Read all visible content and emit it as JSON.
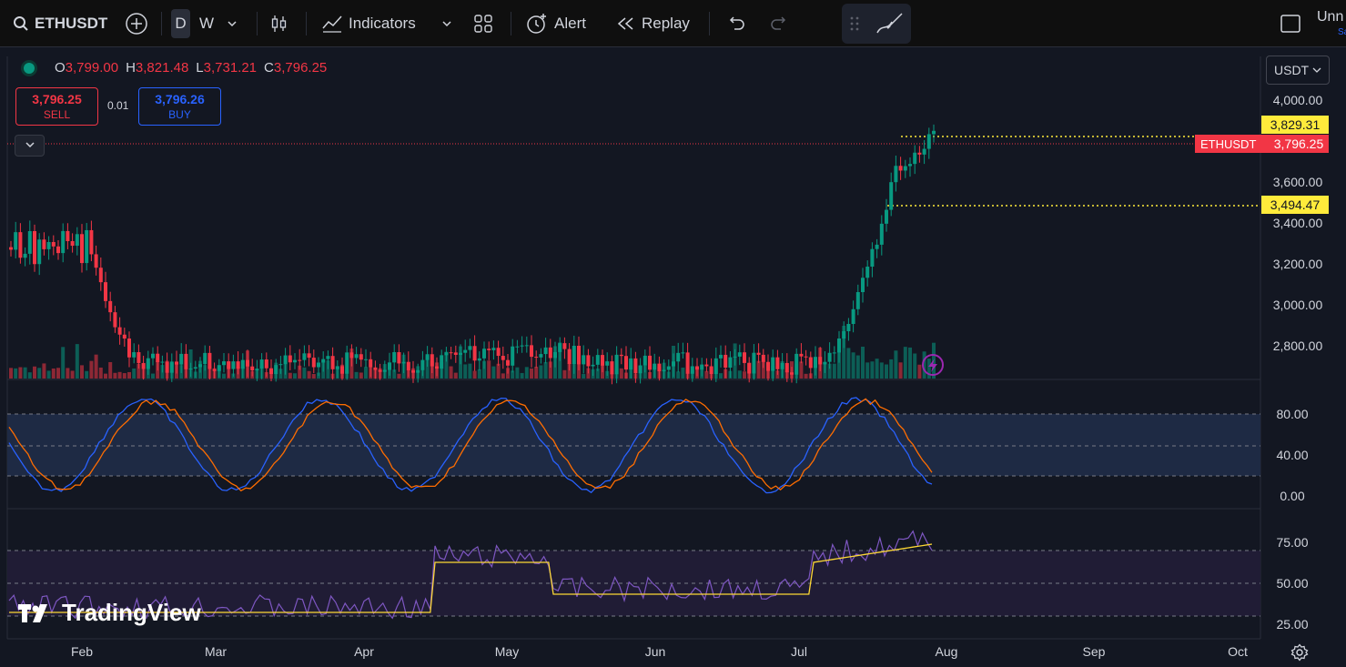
{
  "toolbar": {
    "symbol": "ETHUSDT",
    "interval_d": "D",
    "interval_w": "W",
    "indicators": "Indicators",
    "alert": "Alert",
    "replay": "Replay",
    "layout_name": "Unn",
    "layout_sub": "Sa"
  },
  "ohlc": {
    "o_label": "O",
    "o": "3,799.00",
    "h_label": "H",
    "h": "3,821.48",
    "l_label": "L",
    "l": "3,731.21",
    "c_label": "C",
    "c": "3,796.25"
  },
  "trade": {
    "sell_price": "3,796.25",
    "sell_label": "SELL",
    "spread": "0.01",
    "buy_price": "3,796.26",
    "buy_label": "BUY"
  },
  "currency": "USDT",
  "price_axis": [
    "4,000.00",
    "3,600.00",
    "3,400.00",
    "3,200.00",
    "3,000.00",
    "2,800.00"
  ],
  "price_tags": {
    "high": "3,829.31",
    "low": "3,494.47",
    "symbol": "ETHUSDT",
    "last": "3,796.25"
  },
  "stoch_axis": [
    "80.00",
    "40.00",
    "0.00"
  ],
  "rsi_axis": [
    "75.00",
    "50.00",
    "25.00"
  ],
  "time_axis": [
    "Feb",
    "Mar",
    "Apr",
    "May",
    "Jun",
    "Jul",
    "Aug",
    "Sep",
    "Oct"
  ],
  "brand": "TradingView",
  "colors": {
    "up": "#089981",
    "down": "#f23645",
    "stoch_k": "#2962ff",
    "stoch_d": "#ff6d00",
    "rsi": "#7e57c2",
    "rsi_ma": "#fdd835"
  },
  "icons": [
    "search-icon",
    "add-symbol-icon",
    "chevron-down-icon",
    "candles-icon",
    "indicators-icon",
    "templates-icon",
    "alert-icon",
    "replay-icon",
    "undo-icon",
    "redo-icon",
    "drawing-icon",
    "fullscreen-icon",
    "settings-gear-icon",
    "lightning-icon"
  ]
}
